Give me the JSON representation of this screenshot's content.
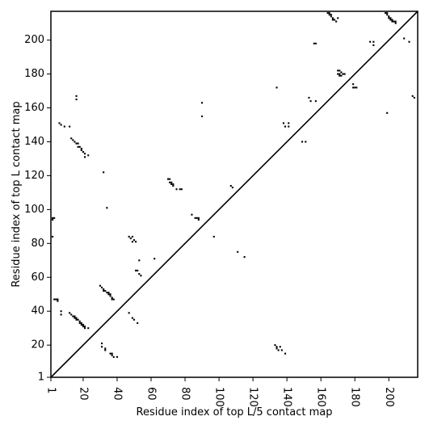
{
  "chart_data": {
    "type": "heatmap",
    "xlabel": "Residue index of top L/5 contact map",
    "ylabel": "Residue index of top L contact map",
    "xlim": [
      1,
      217
    ],
    "ylim": [
      1,
      217
    ],
    "x_ticks": [
      1,
      20,
      40,
      60,
      80,
      100,
      120,
      140,
      160,
      180,
      200
    ],
    "y_ticks": [
      1,
      20,
      40,
      60,
      80,
      100,
      120,
      140,
      160,
      180,
      200
    ],
    "diagonal_line": true,
    "cell_color": "#000000",
    "below_diagonal_note_values": [],
    "upper_contacts": [
      [
        164,
        216
      ],
      [
        165,
        216
      ],
      [
        165,
        215
      ],
      [
        166,
        214
      ],
      [
        166,
        215
      ],
      [
        167,
        213
      ],
      [
        167,
        212
      ],
      [
        168,
        212
      ],
      [
        169,
        211
      ],
      [
        170,
        213
      ],
      [
        157,
        198
      ],
      [
        156,
        198
      ],
      [
        198,
        216
      ],
      [
        199,
        216
      ],
      [
        199,
        215
      ],
      [
        200,
        214
      ],
      [
        200,
        213
      ],
      [
        201,
        213
      ],
      [
        201,
        212
      ],
      [
        202,
        212
      ],
      [
        202,
        211
      ],
      [
        203,
        211
      ],
      [
        204,
        211
      ],
      [
        204,
        210
      ],
      [
        189,
        199
      ],
      [
        191,
        199
      ],
      [
        191,
        197
      ],
      [
        209,
        201
      ],
      [
        212,
        199
      ],
      [
        214,
        167
      ],
      [
        215,
        166
      ],
      [
        199,
        157
      ],
      [
        170,
        182
      ],
      [
        171,
        182
      ],
      [
        172,
        181
      ],
      [
        171,
        180
      ],
      [
        170,
        180
      ],
      [
        171,
        179
      ],
      [
        172,
        179
      ],
      [
        173,
        180
      ],
      [
        174,
        180
      ],
      [
        179,
        174
      ],
      [
        179,
        172
      ],
      [
        180,
        172
      ],
      [
        181,
        172
      ],
      [
        134,
        172
      ],
      [
        153,
        166
      ],
      [
        154,
        164
      ],
      [
        157,
        164
      ],
      [
        90,
        163
      ],
      [
        90,
        155
      ],
      [
        138,
        151
      ],
      [
        139,
        149
      ],
      [
        141,
        151
      ],
      [
        141,
        149
      ],
      [
        149,
        140
      ],
      [
        151,
        140
      ]
    ],
    "lower_contacts": [
      [
        2,
        94
      ],
      [
        2,
        95
      ],
      [
        3,
        95
      ],
      [
        2,
        84
      ],
      [
        3,
        47
      ],
      [
        4,
        47
      ],
      [
        5,
        47
      ],
      [
        5,
        46
      ],
      [
        7,
        40
      ],
      [
        7,
        38
      ],
      [
        12,
        39
      ],
      [
        13,
        38
      ],
      [
        14,
        37
      ],
      [
        15,
        37
      ],
      [
        15,
        36
      ],
      [
        16,
        36
      ],
      [
        16,
        35
      ],
      [
        17,
        35
      ],
      [
        18,
        34
      ],
      [
        18,
        33
      ],
      [
        19,
        33
      ],
      [
        19,
        32
      ],
      [
        20,
        32
      ],
      [
        20,
        31
      ],
      [
        21,
        31
      ],
      [
        21,
        30
      ],
      [
        23,
        30
      ],
      [
        30,
        55
      ],
      [
        31,
        54
      ],
      [
        32,
        53
      ],
      [
        32,
        52
      ],
      [
        33,
        52
      ],
      [
        34,
        51
      ],
      [
        35,
        51
      ],
      [
        35,
        50
      ],
      [
        36,
        50
      ],
      [
        36,
        49
      ],
      [
        37,
        48
      ],
      [
        37,
        47
      ],
      [
        38,
        47
      ],
      [
        31,
        21
      ],
      [
        31,
        19
      ],
      [
        33,
        18
      ],
      [
        33,
        17
      ],
      [
        36,
        15
      ],
      [
        37,
        15
      ],
      [
        37,
        14
      ],
      [
        38,
        13
      ],
      [
        40,
        13
      ],
      [
        32,
        122
      ],
      [
        34,
        101
      ],
      [
        47,
        84
      ],
      [
        48,
        83
      ],
      [
        49,
        84
      ],
      [
        49,
        81
      ],
      [
        50,
        82
      ],
      [
        51,
        81
      ],
      [
        51,
        64
      ],
      [
        52,
        64
      ],
      [
        53,
        62
      ],
      [
        54,
        61
      ],
      [
        47,
        39
      ],
      [
        49,
        36
      ],
      [
        50,
        35
      ],
      [
        52,
        33
      ],
      [
        53,
        70
      ],
      [
        62,
        71
      ],
      [
        6,
        151
      ],
      [
        7,
        150
      ],
      [
        9,
        149
      ],
      [
        12,
        149
      ],
      [
        13,
        142
      ],
      [
        14,
        141
      ],
      [
        15,
        140
      ],
      [
        16,
        139
      ],
      [
        17,
        139
      ],
      [
        17,
        137
      ],
      [
        18,
        137
      ],
      [
        19,
        136
      ],
      [
        19,
        135
      ],
      [
        20,
        134
      ],
      [
        21,
        133
      ],
      [
        21,
        131
      ],
      [
        23,
        132
      ],
      [
        16,
        167
      ],
      [
        16,
        165
      ],
      [
        70,
        118
      ],
      [
        71,
        118
      ],
      [
        71,
        116
      ],
      [
        72,
        116
      ],
      [
        72,
        115
      ],
      [
        73,
        115
      ],
      [
        73,
        114
      ],
      [
        75,
        112
      ],
      [
        77,
        112
      ],
      [
        78,
        112
      ],
      [
        84,
        97
      ],
      [
        86,
        95
      ],
      [
        87,
        95
      ],
      [
        88,
        94
      ],
      [
        88,
        95
      ],
      [
        97,
        84
      ],
      [
        107,
        114
      ],
      [
        108,
        113
      ],
      [
        111,
        75
      ],
      [
        115,
        72
      ],
      [
        133,
        20
      ],
      [
        134,
        19
      ],
      [
        134,
        18
      ],
      [
        135,
        17
      ],
      [
        136,
        19
      ],
      [
        137,
        17
      ],
      [
        139,
        15
      ]
    ]
  }
}
